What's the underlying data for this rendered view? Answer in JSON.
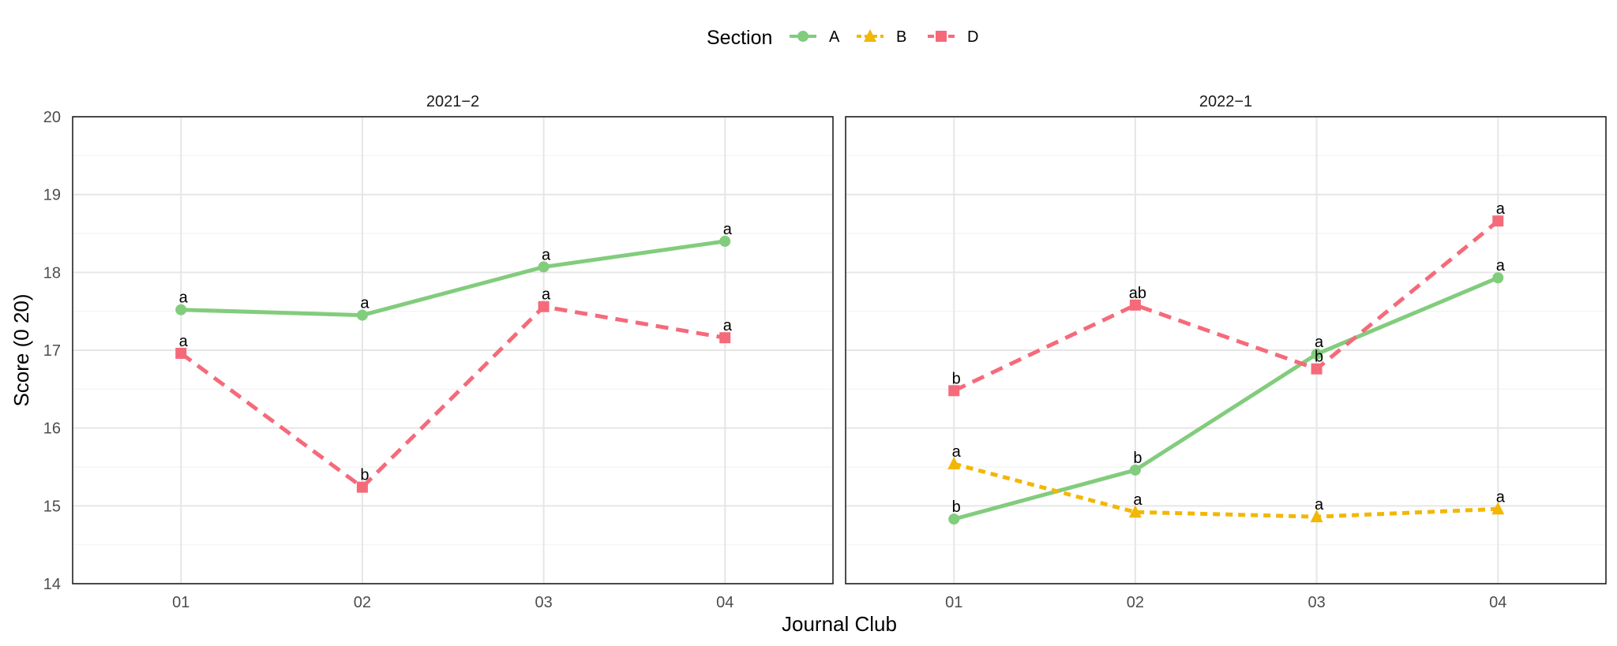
{
  "chart_data": {
    "type": "line",
    "xlabel": "Journal Club",
    "ylabel": "Score (0   20)",
    "ylim": [
      14,
      20
    ],
    "yticks": [
      14,
      15,
      16,
      17,
      18,
      19,
      20
    ],
    "categories": [
      "01",
      "02",
      "03",
      "04"
    ],
    "grid": true,
    "legend": {
      "title": "Section",
      "position": "top",
      "entries": [
        {
          "name": "A",
          "color": "#82cc7d",
          "marker": "circle",
          "dash": "solid"
        },
        {
          "name": "B",
          "color": "#f2b705",
          "marker": "triangle",
          "dash": "dotted"
        },
        {
          "name": "D",
          "color": "#f56a7a",
          "marker": "square",
          "dash": "dashed"
        }
      ]
    },
    "panels": [
      {
        "title": "2021−2",
        "series": [
          {
            "name": "A",
            "values": [
              17.52,
              17.45,
              18.07,
              18.4
            ],
            "labels": [
              "a",
              "a",
              "a",
              "a"
            ]
          },
          {
            "name": "D",
            "values": [
              16.96,
              15.24,
              17.56,
              17.16
            ],
            "labels": [
              "a",
              "b",
              "a",
              "a"
            ]
          }
        ]
      },
      {
        "title": "2022−1",
        "series": [
          {
            "name": "A",
            "values": [
              14.83,
              15.46,
              16.95,
              17.93
            ],
            "labels": [
              "b",
              "b",
              "a",
              "a"
            ]
          },
          {
            "name": "B",
            "values": [
              15.54,
              14.92,
              14.86,
              14.96
            ],
            "labels": [
              "a",
              "a",
              "a",
              "a"
            ]
          },
          {
            "name": "D",
            "values": [
              16.48,
              17.58,
              16.76,
              18.66
            ],
            "labels": [
              "b",
              "ab",
              "b",
              "a"
            ]
          }
        ]
      }
    ]
  }
}
